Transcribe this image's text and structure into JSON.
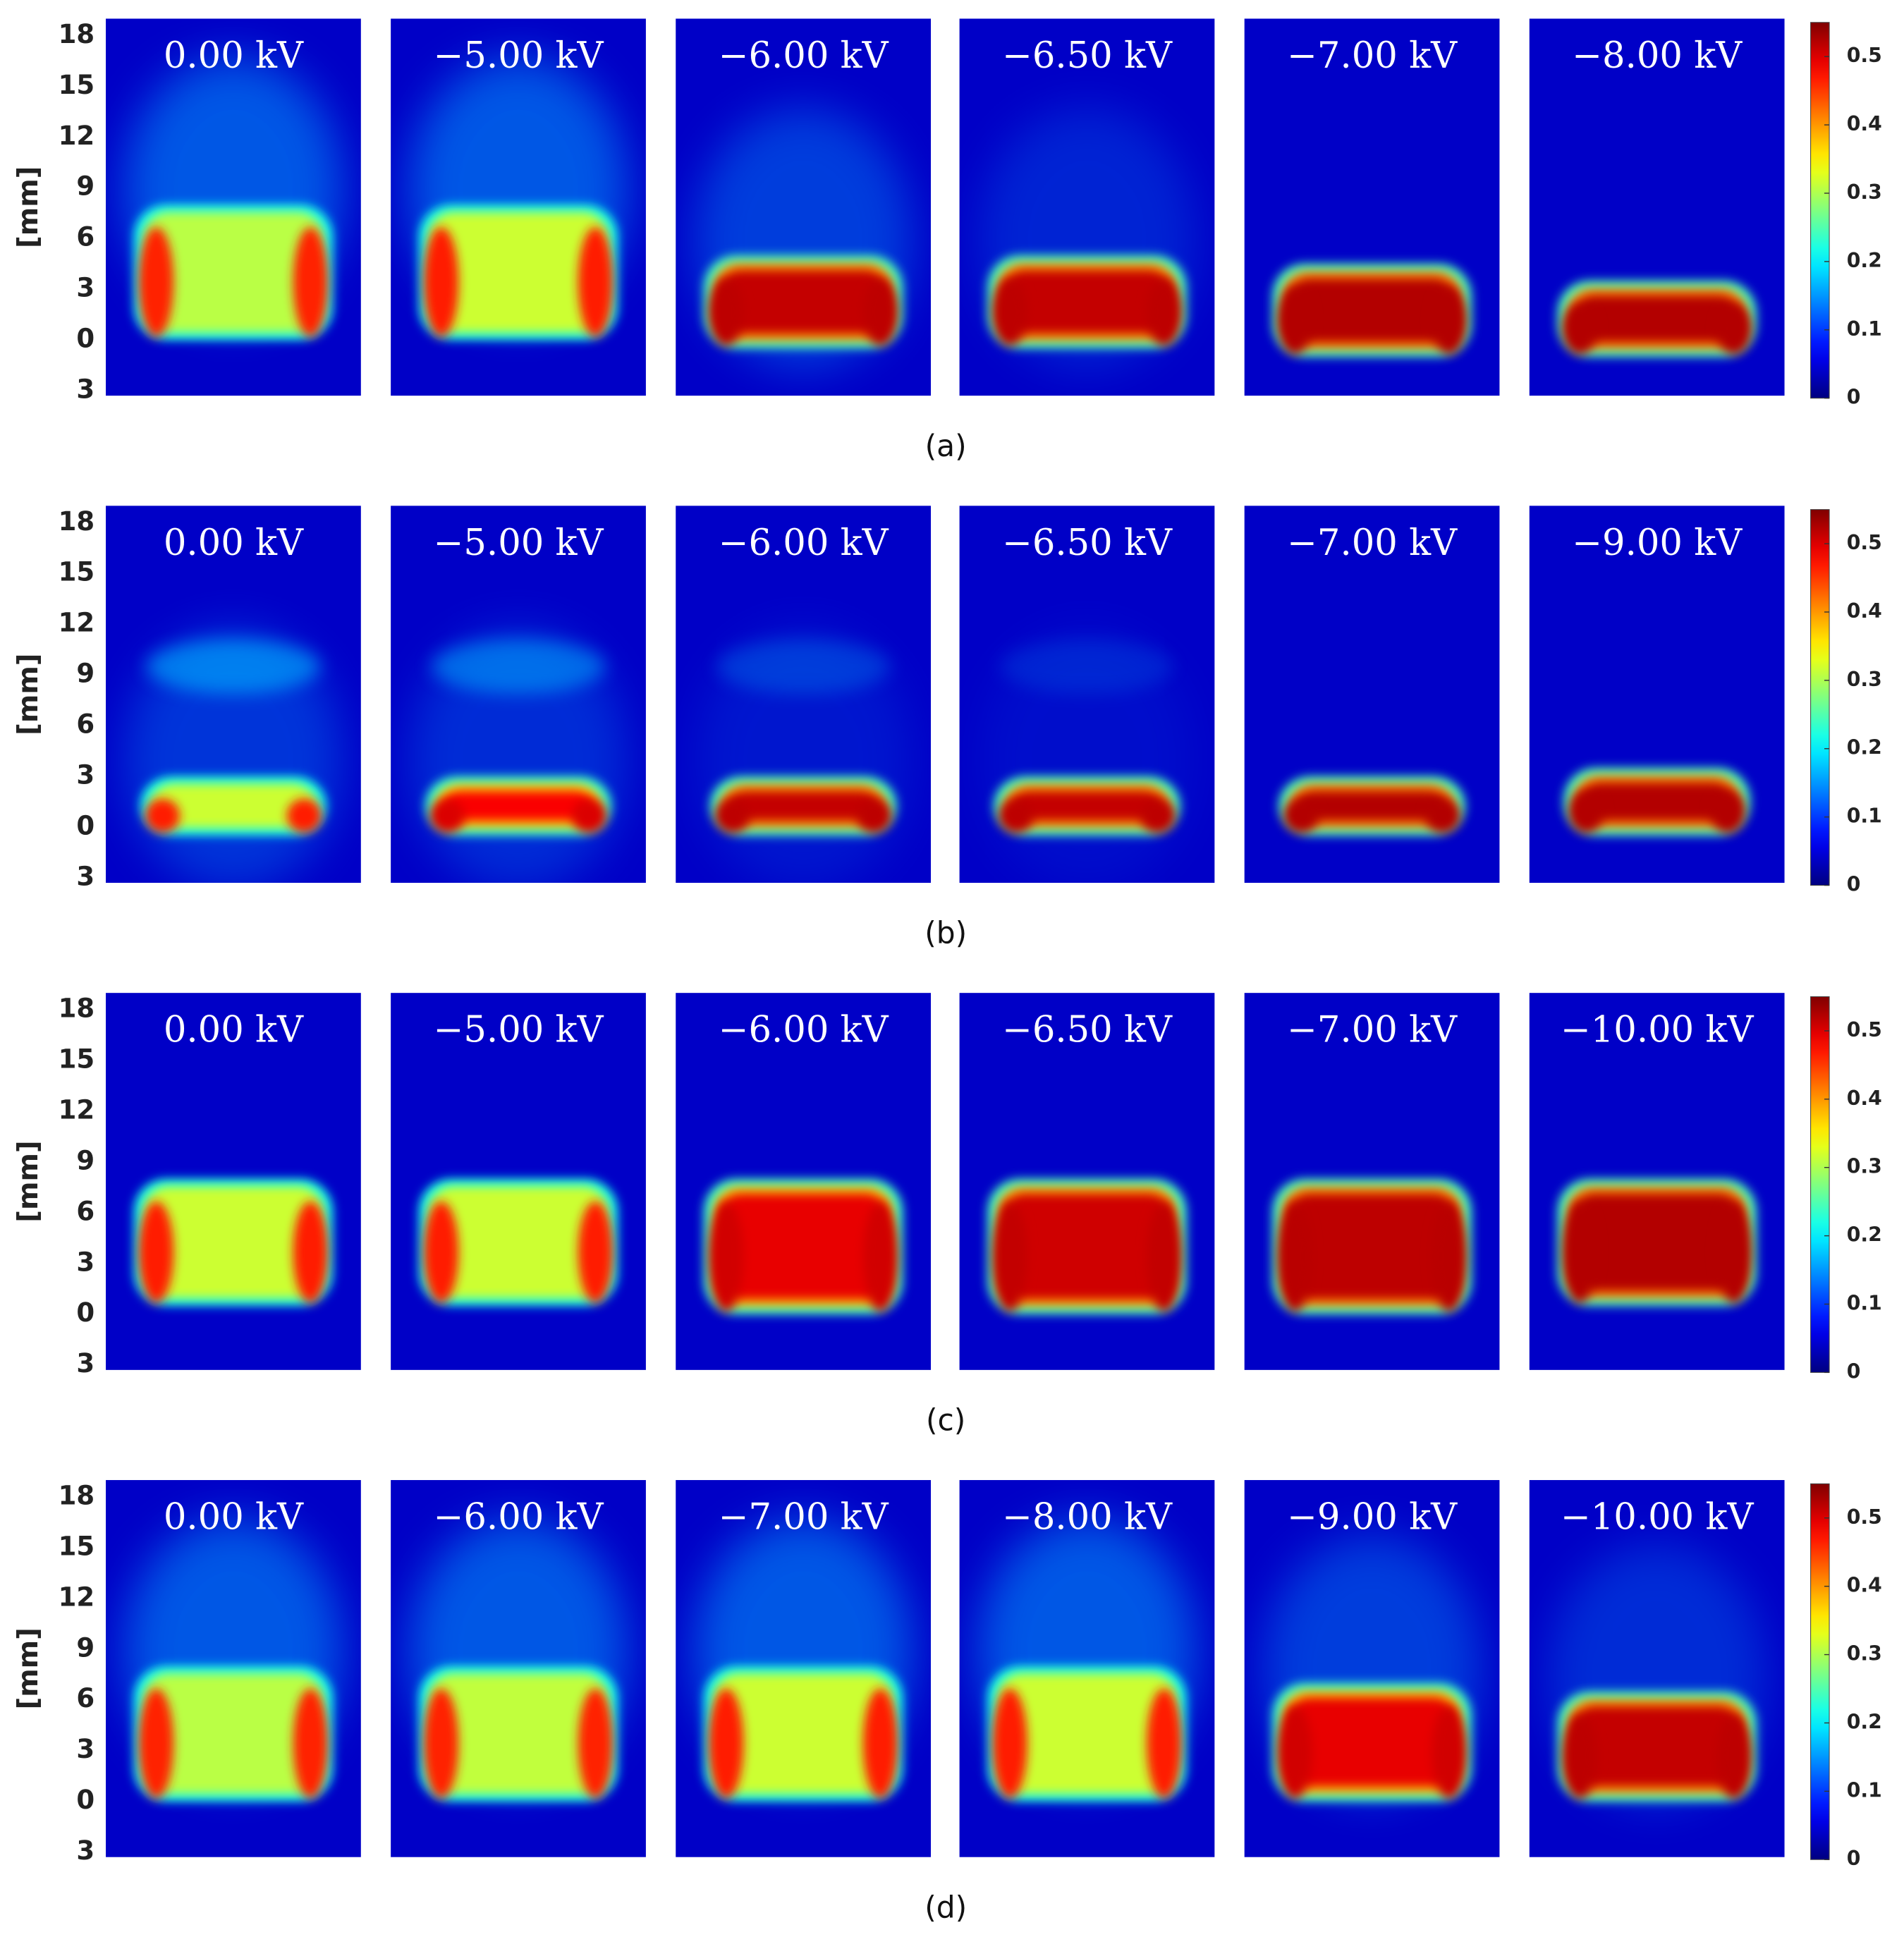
{
  "chart_data": [
    {
      "type": "heatmap",
      "caption": "(a)",
      "ylabel": "[mm]",
      "panels": [
        "0.00 kV",
        "−5.00 kV",
        "−6.00 kV",
        "−6.50 kV",
        "−7.00 kV",
        "−8.00 kV"
      ],
      "ylim": [
        -3.3,
        19
      ],
      "yticks": [
        18,
        15,
        12,
        9,
        6,
        3,
        0,
        {
          "value": -3,
          "label": "3"
        }
      ],
      "colormap": "jet",
      "clim": [
        0,
        0.55
      ],
      "cticks": [
        0,
        0.1,
        0.2,
        0.3,
        0.4,
        0.5
      ]
    },
    {
      "type": "heatmap",
      "caption": "(b)",
      "ylabel": "[mm]",
      "panels": [
        "0.00 kV",
        "−5.00 kV",
        "−6.00 kV",
        "−6.50 kV",
        "−7.00 kV",
        "−9.00 kV"
      ],
      "ylim": [
        -3.3,
        19
      ],
      "yticks": [
        18,
        15,
        12,
        9,
        6,
        3,
        0,
        {
          "value": -3,
          "label": "3"
        }
      ],
      "colormap": "jet",
      "clim": [
        0,
        0.55
      ],
      "cticks": [
        0,
        0.1,
        0.2,
        0.3,
        0.4,
        0.5
      ]
    },
    {
      "type": "heatmap",
      "caption": "(c)",
      "ylabel": "[mm]",
      "panels": [
        "0.00 kV",
        "−5.00 kV",
        "−6.00 kV",
        "−6.50 kV",
        "−7.00 kV",
        "−10.00 kV"
      ],
      "ylim": [
        -3.3,
        19
      ],
      "yticks": [
        18,
        15,
        12,
        9,
        6,
        3,
        0,
        {
          "value": -3,
          "label": "3"
        }
      ],
      "colormap": "jet",
      "clim": [
        0,
        0.55
      ],
      "cticks": [
        0,
        0.1,
        0.2,
        0.3,
        0.4,
        0.5
      ]
    },
    {
      "type": "heatmap",
      "caption": "(d)",
      "ylabel": "[mm]",
      "panels": [
        "0.00 kV",
        "−6.00 kV",
        "−7.00 kV",
        "−8.00 kV",
        "−9.00 kV",
        "−10.00 kV"
      ],
      "ylim": [
        -3.3,
        19
      ],
      "yticks": [
        18,
        15,
        12,
        9,
        6,
        3,
        0,
        {
          "value": -3,
          "label": "3"
        }
      ],
      "colormap": "jet",
      "clim": [
        0,
        0.55
      ],
      "cticks": [
        0,
        0.1,
        0.2,
        0.3,
        0.4,
        0.5
      ]
    }
  ]
}
